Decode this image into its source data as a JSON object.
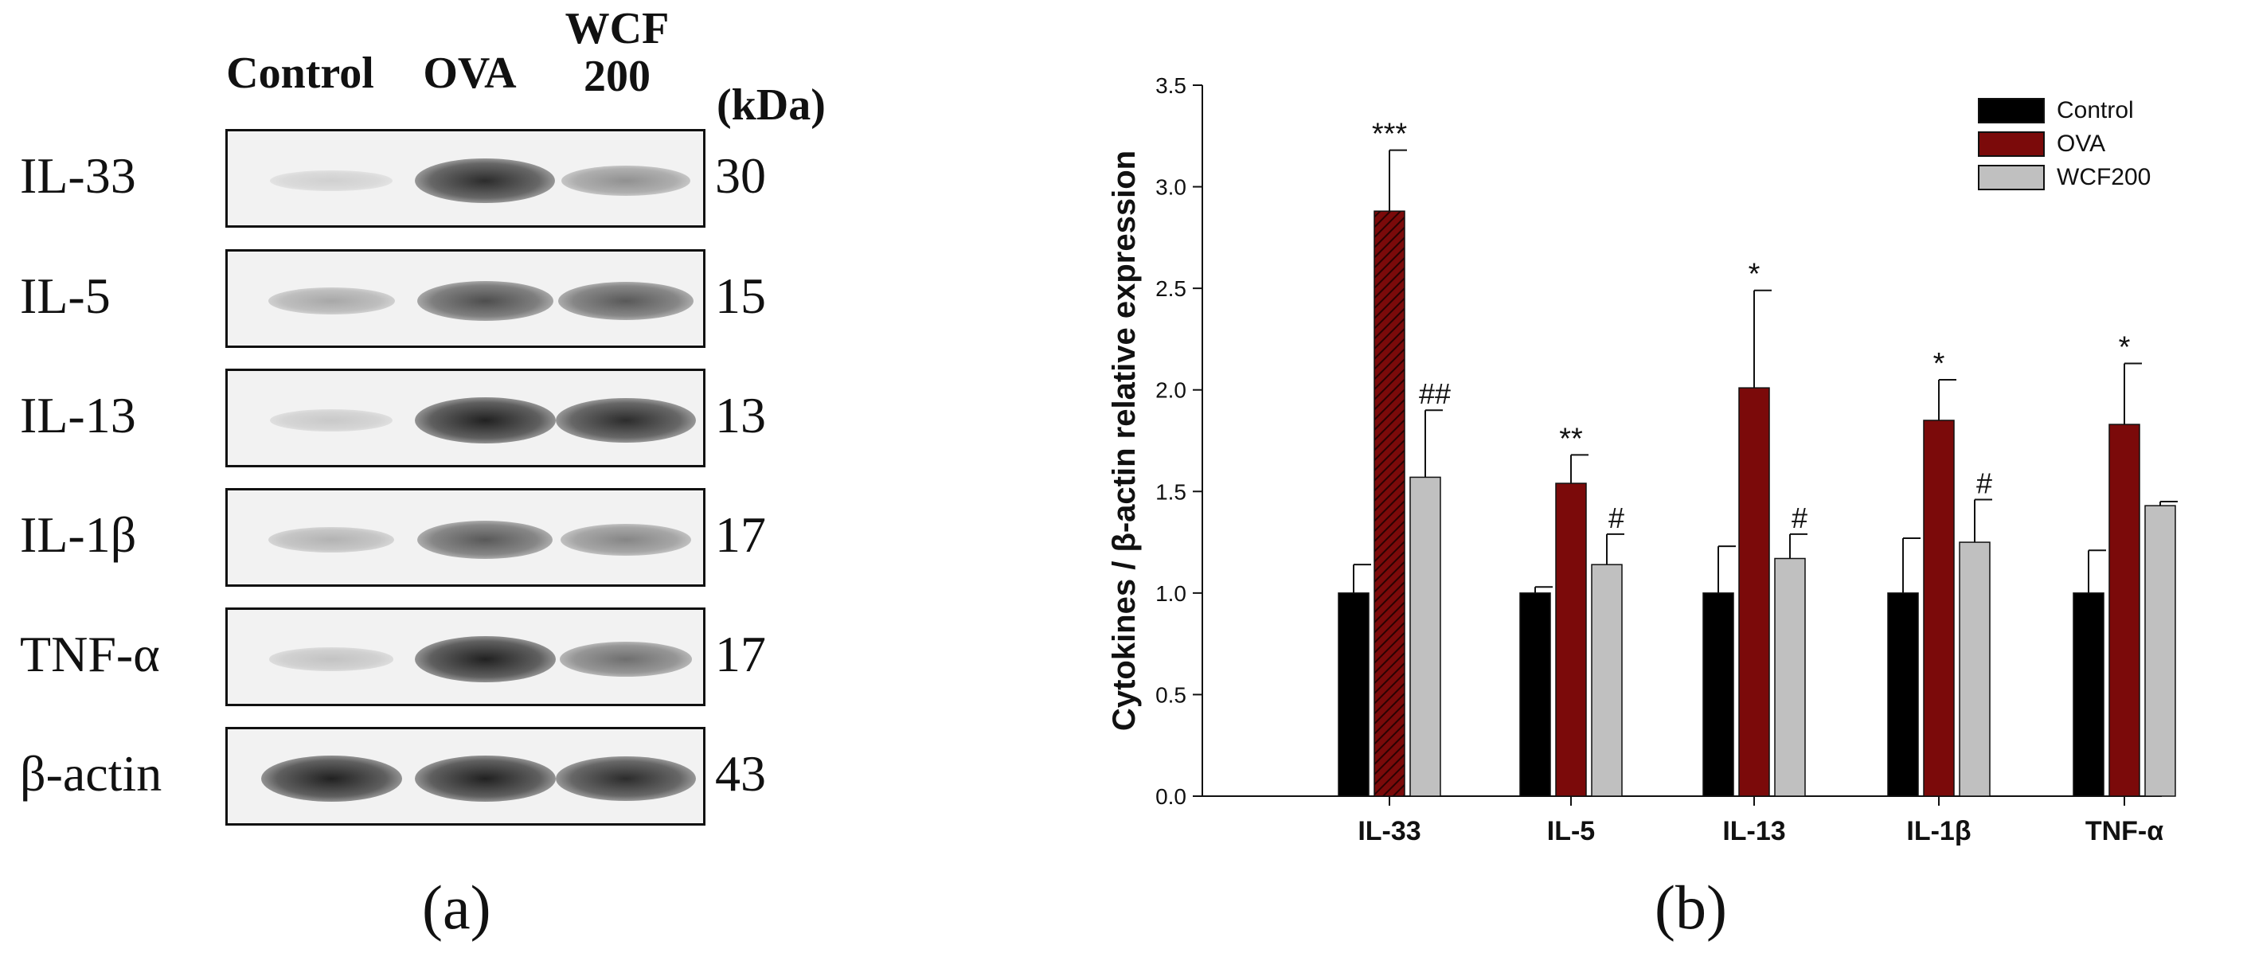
{
  "panel_a": {
    "lanes": [
      "Control",
      "OVA",
      "WCF 200"
    ],
    "kda_header": "(kDa)",
    "caption": "(a)",
    "blots": [
      {
        "label": "IL-33",
        "kda": "30",
        "intensity": [
          0.12,
          0.85,
          0.4
        ]
      },
      {
        "label": "IL-5",
        "kda": "15",
        "intensity": [
          0.3,
          0.7,
          0.65
        ]
      },
      {
        "label": "IL-13",
        "kda": "13",
        "intensity": [
          0.15,
          0.9,
          0.85
        ]
      },
      {
        "label": "IL-1β",
        "kda": "17",
        "intensity": [
          0.25,
          0.65,
          0.45
        ]
      },
      {
        "label": "TNF-α",
        "kda": "17",
        "intensity": [
          0.18,
          0.9,
          0.55
        ]
      },
      {
        "label": "β-actin",
        "kda": "43",
        "intensity": [
          0.9,
          0.9,
          0.85
        ]
      }
    ]
  },
  "panel_b": {
    "caption": "(b)"
  },
  "chart_data": {
    "type": "bar",
    "title": "",
    "xlabel": "",
    "ylabel": "Cytokines / β-actin relative expression",
    "ylim": [
      0,
      3.5
    ],
    "yticks": [
      "0.0",
      "0.5",
      "1.0",
      "1.5",
      "2.0",
      "2.5",
      "3.0",
      "3.5"
    ],
    "categories": [
      "IL-33",
      "IL-5",
      "IL-13",
      "IL-1β",
      "TNF-α"
    ],
    "legend_position": "top-right",
    "series": [
      {
        "name": "Control",
        "color": "#000000",
        "values": [
          1.0,
          1.0,
          1.0,
          1.0,
          1.0
        ],
        "errors": [
          0.14,
          0.03,
          0.23,
          0.27,
          0.21
        ],
        "annotations": [
          "",
          "",
          "",
          "",
          ""
        ]
      },
      {
        "name": "OVA",
        "color": "#7b0a0a",
        "values": [
          2.88,
          1.54,
          2.01,
          1.85,
          1.83
        ],
        "errors": [
          0.3,
          0.14,
          0.48,
          0.2,
          0.3
        ],
        "annotations": [
          "***",
          "**",
          "*",
          "*",
          "*"
        ]
      },
      {
        "name": "WCF200",
        "color": "#c0c0c0",
        "values": [
          1.57,
          1.14,
          1.17,
          1.25,
          1.43
        ],
        "errors": [
          0.33,
          0.15,
          0.12,
          0.21,
          0.02
        ],
        "annotations": [
          "##",
          "#",
          "#",
          "#",
          ""
        ]
      }
    ]
  }
}
